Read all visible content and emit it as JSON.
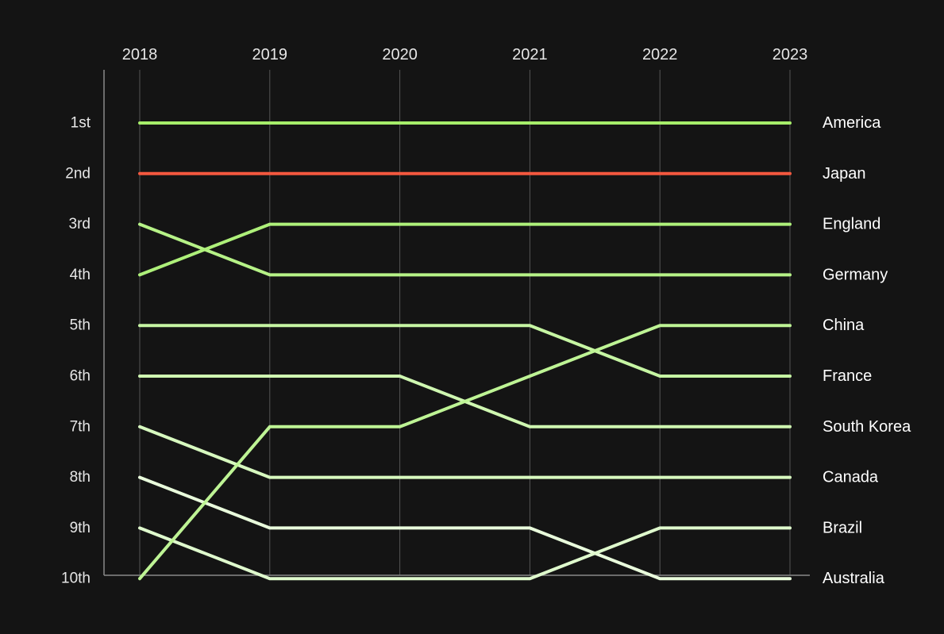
{
  "chart_data": {
    "type": "line",
    "x": [
      "2018",
      "2019",
      "2020",
      "2021",
      "2022",
      "2023"
    ],
    "y_tick_labels": [
      "1st",
      "2nd",
      "3rd",
      "4th",
      "5th",
      "6th",
      "7th",
      "8th",
      "9th",
      "10th"
    ],
    "ylim": [
      1,
      10
    ],
    "y_inverted": true,
    "grid": "vertical",
    "series": [
      {
        "name": "America",
        "values": [
          1,
          1,
          1,
          1,
          1,
          1
        ],
        "color": "#a6ee6a"
      },
      {
        "name": "Japan",
        "values": [
          2,
          2,
          2,
          2,
          2,
          2
        ],
        "color": "#f4583f"
      },
      {
        "name": "England",
        "values": [
          4,
          3,
          3,
          3,
          3,
          3
        ],
        "color": "#aef07a"
      },
      {
        "name": "Germany",
        "values": [
          3,
          4,
          4,
          4,
          4,
          4
        ],
        "color": "#b6f287"
      },
      {
        "name": "China",
        "values": [
          10,
          7,
          7,
          6,
          5,
          5
        ],
        "color": "#bef495"
      },
      {
        "name": "France",
        "values": [
          5,
          5,
          5,
          5,
          6,
          6
        ],
        "color": "#c6f5a3"
      },
      {
        "name": "South Korea",
        "values": [
          6,
          6,
          6,
          7,
          7,
          7
        ],
        "color": "#cff7b1"
      },
      {
        "name": "Canada",
        "values": [
          7,
          8,
          8,
          8,
          8,
          8
        ],
        "color": "#d7f9bf"
      },
      {
        "name": "Brazil",
        "values": [
          9,
          10,
          10,
          10,
          9,
          9
        ],
        "color": "#dffacd"
      },
      {
        "name": "Australia",
        "values": [
          8,
          9,
          9,
          9,
          10,
          10
        ],
        "color": "#e9fcdc"
      }
    ]
  }
}
